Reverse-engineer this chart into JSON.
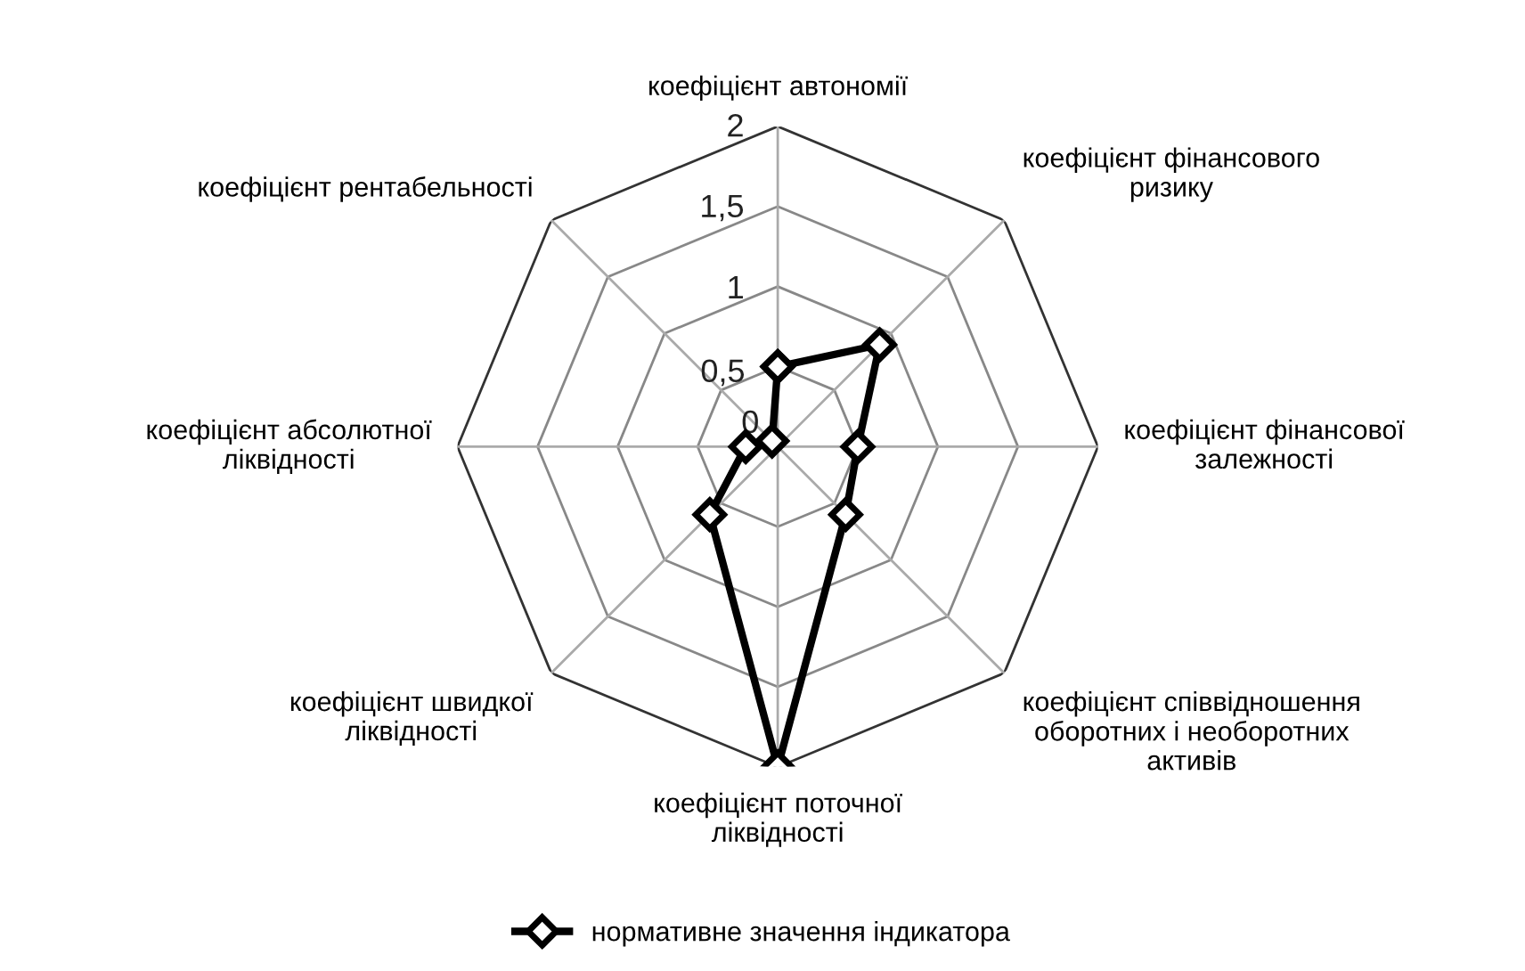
{
  "chart_data": {
    "type": "radar",
    "categories": [
      "коефіцієнт автономії",
      "коефіцієнт фінансового ризику",
      "коефіцієнт фінансової залежності",
      "коефіцієнт співвідношення оборотних і необоротних активів",
      "коефіцієнт поточної ліквідності",
      "коефіцієнт швидкої ліквідності",
      "коефіцієнт абсолютної ліквідності",
      "коефіцієнт рентабельності"
    ],
    "series": [
      {
        "name": "нормативне значення індикатора",
        "color": "#000000",
        "values": [
          0.5,
          0.9,
          0.5,
          0.6,
          2,
          0.6,
          0.2,
          0.05
        ]
      }
    ],
    "ylim": [
      0,
      2
    ],
    "yticks": [
      0,
      {
        "value": 0.5,
        "label": "0,5"
      },
      1,
      {
        "value": 1.5,
        "label": "1,5"
      },
      2
    ],
    "grid": true,
    "legend": "bottom",
    "marker": "diamond",
    "line_style": "solid"
  }
}
